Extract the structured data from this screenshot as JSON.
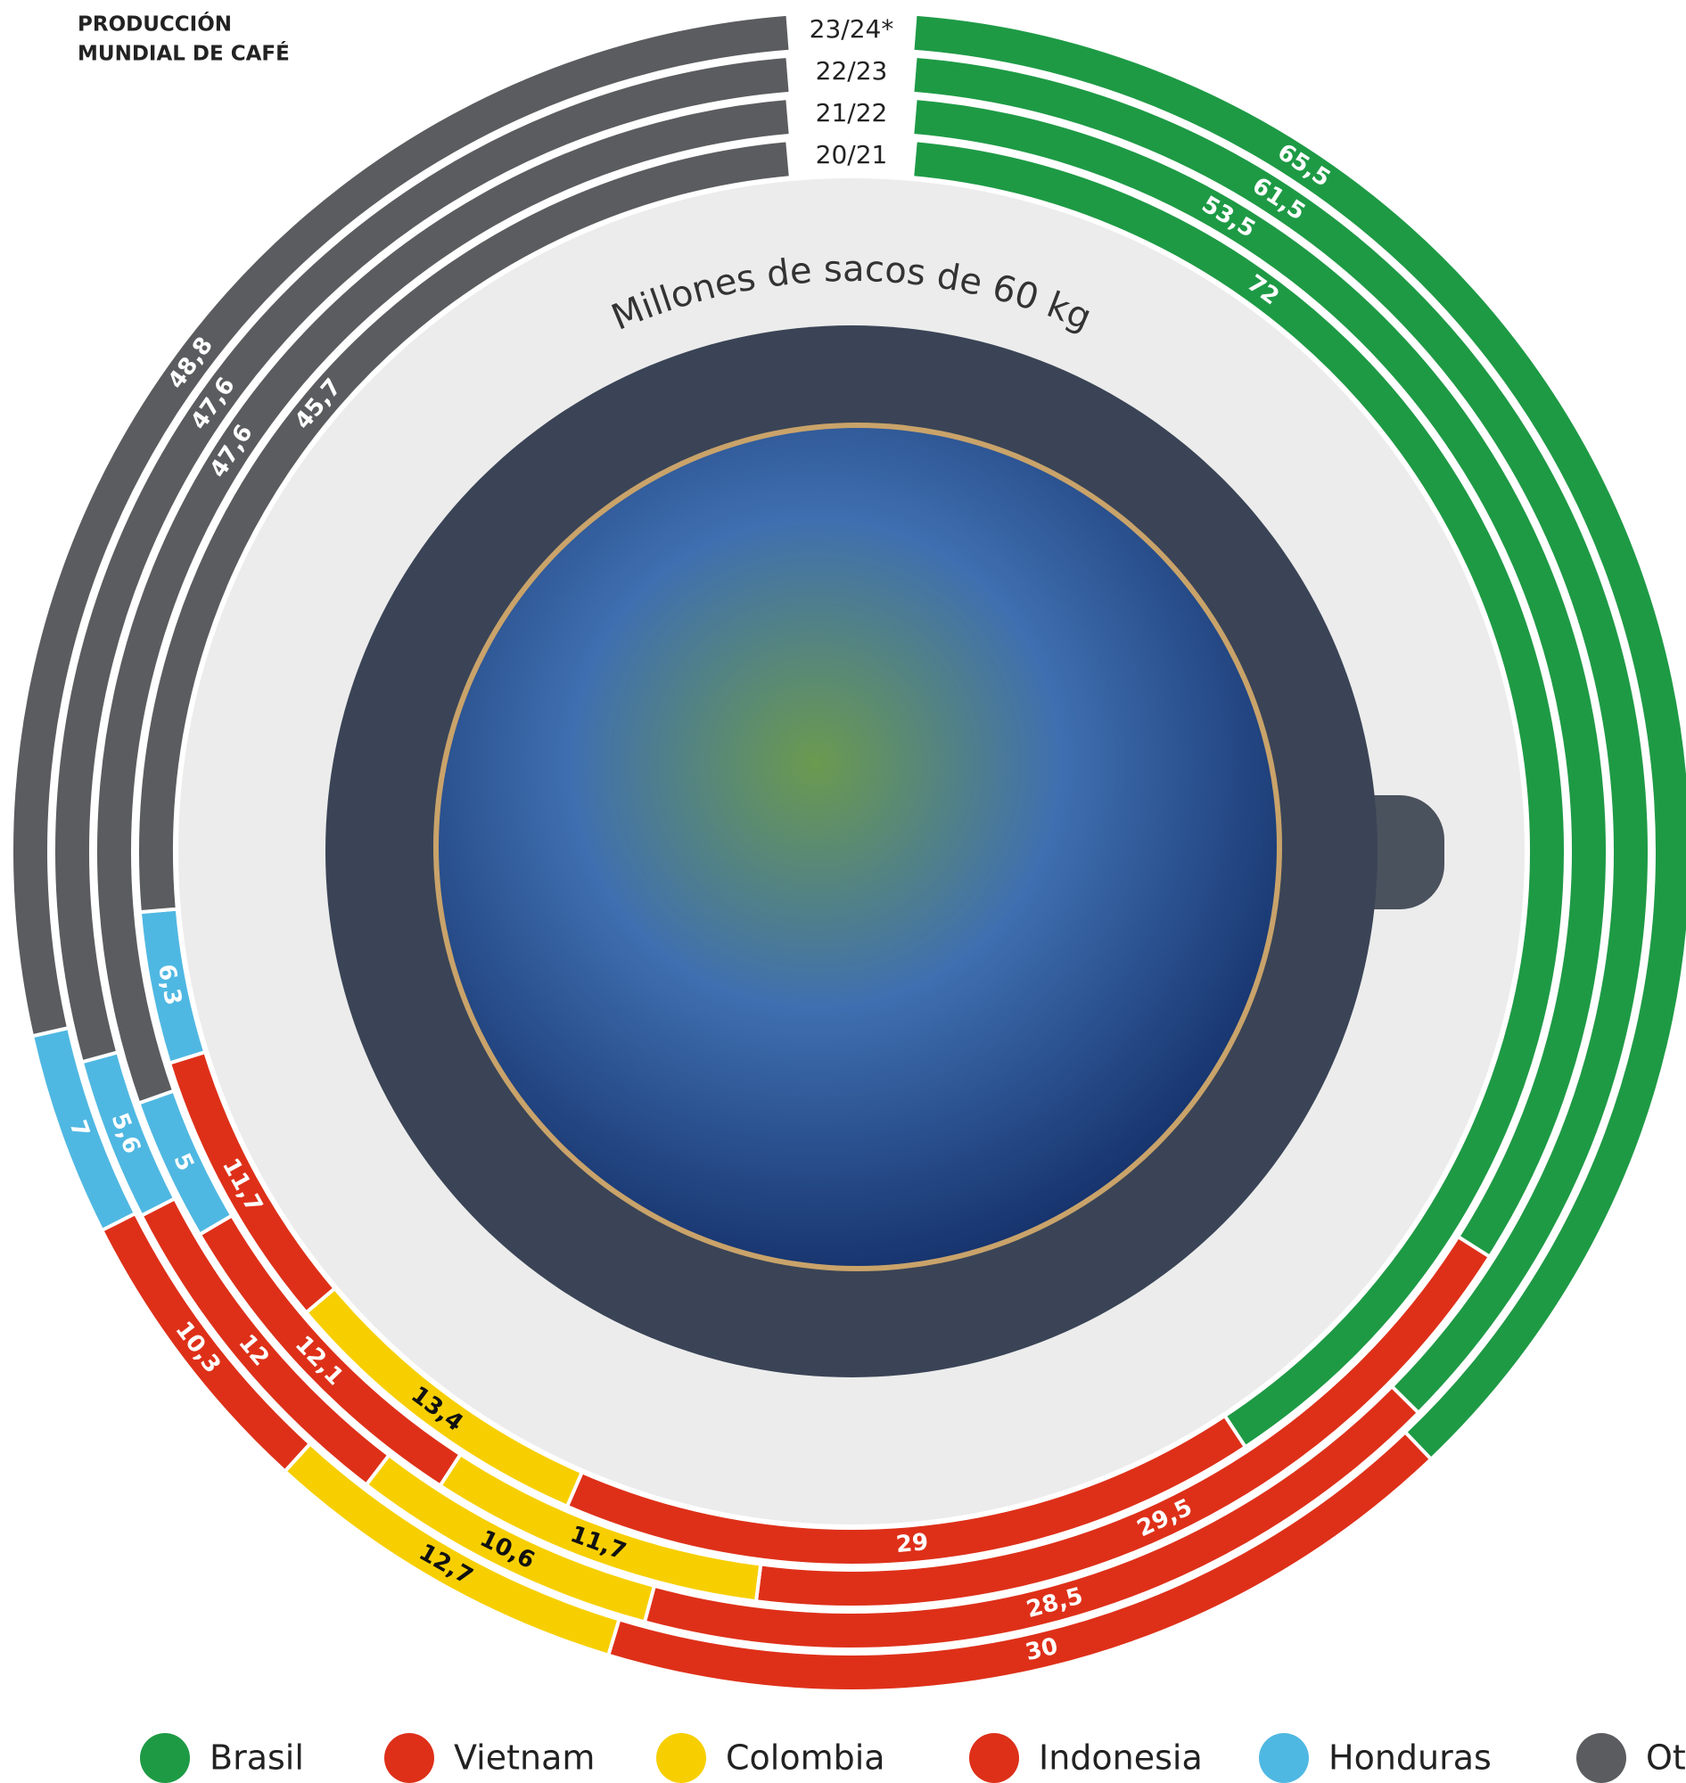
{
  "chart_data": {
    "type": "radial-stacked-bar",
    "title_lines": [
      "PRODUCCIÓN",
      "MUNDIAL DE CAFÉ"
    ],
    "subtitle": "Millones de sacos de 60 kg",
    "categories": [
      "23/24*",
      "22/23",
      "21/22",
      "20/21"
    ],
    "series": [
      {
        "name": "Brasil",
        "color": "#1e9a45",
        "values": [
          65.5,
          61.5,
          53.5,
          72
        ],
        "value_labels": [
          "65,5",
          "61,5",
          "53,5",
          "72"
        ]
      },
      {
        "name": "Vietnam",
        "color": "#de3019",
        "values": [
          30,
          28.5,
          29.5,
          29
        ],
        "value_labels": [
          "30",
          "28,5",
          "29,5",
          "29"
        ]
      },
      {
        "name": "Colombia",
        "color": "#f7cf00",
        "values": [
          12.7,
          10.6,
          11.7,
          13.4
        ],
        "value_labels": [
          "12,7",
          "10,6",
          "11,7",
          "13,4"
        ]
      },
      {
        "name": "Indonesia",
        "color": "#de3019",
        "values": [
          10.3,
          12,
          12.1,
          11.7
        ],
        "value_labels": [
          "10,3",
          "12",
          "12,1",
          "11,7"
        ]
      },
      {
        "name": "Honduras",
        "color": "#4fb8e2",
        "values": [
          7,
          5.6,
          5,
          6.3
        ],
        "value_labels": [
          "7",
          "5,6",
          "5",
          "6,3"
        ]
      },
      {
        "name": "Otros",
        "color": "#5b5c5f",
        "values": [
          48.8,
          47.6,
          47.6,
          45.7
        ],
        "value_labels": [
          "48,8",
          "47,6",
          "47,6",
          "45,7"
        ]
      }
    ]
  }
}
